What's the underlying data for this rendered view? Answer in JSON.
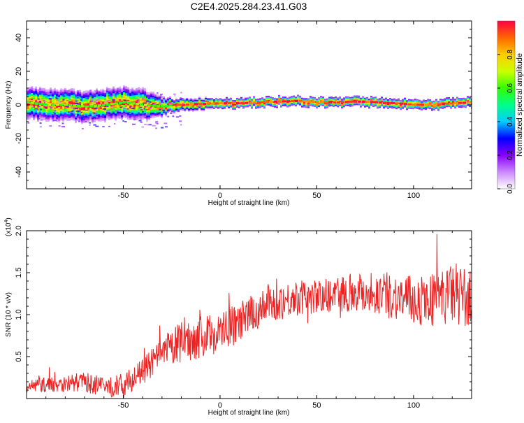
{
  "title": "C2E4.2025.284.23.41.G03",
  "chart_data": [
    {
      "type": "heatmap",
      "xlabel": "Height of straight line (km)",
      "ylabel": "Frequency (Hz)",
      "xlim": [
        -100,
        130
      ],
      "ylim": [
        -50,
        50
      ],
      "xticks": [
        -50,
        0,
        50,
        100
      ],
      "xtick_labels": [
        "-50",
        "0",
        "50",
        "100"
      ],
      "yticks": [
        -40,
        -20,
        0,
        20,
        40
      ],
      "ytick_labels": [
        "-40",
        "-20",
        "0",
        "20",
        "40"
      ],
      "ridge_x": [
        -100,
        -90,
        -80,
        -70,
        -60,
        -50,
        -40,
        -30,
        -25,
        -20,
        -10,
        0,
        10,
        20,
        30,
        40,
        50,
        60,
        70,
        80,
        90,
        100,
        110,
        120,
        130
      ],
      "ridge_y": [
        1.5,
        0,
        0,
        -1,
        0,
        1.5,
        0,
        -1,
        0,
        0,
        0.5,
        1,
        1,
        1.5,
        2,
        2.5,
        1.5,
        1.5,
        2,
        1.5,
        1,
        0,
        0,
        1,
        1.5
      ],
      "spread_x": [
        -100,
        -60,
        -40,
        -25,
        0,
        50,
        130
      ],
      "spread_hz": [
        9,
        9,
        9,
        4,
        3,
        3,
        3
      ],
      "colorbar": {
        "label": "Normalized spectral amplitude",
        "range": [
          0,
          1
        ],
        "ticks": [
          0.0,
          0.2,
          0.4,
          0.6,
          0.8
        ],
        "tick_labels": [
          "0.0",
          "0.2",
          "0.4",
          "0.6",
          "0.8"
        ],
        "colors": [
          "#ffffff",
          "#cc88ff",
          "#8800ff",
          "#0000ff",
          "#00ccff",
          "#00ff88",
          "#33ff00",
          "#ccff00",
          "#ffcc00",
          "#ff6600",
          "#ff0044"
        ]
      }
    },
    {
      "type": "line",
      "xlabel": "Height of straight line (km)",
      "ylabel": "SNR (10 * v/v)",
      "y_multiplier": "(x10",
      "y_multiplier_exp": "4",
      "y_multiplier_close": ")",
      "xlim": [
        -100,
        130
      ],
      "ylim": [
        0,
        20000
      ],
      "xticks": [
        -50,
        0,
        50,
        100
      ],
      "xtick_labels": [
        "-50",
        "0",
        "50",
        "100"
      ],
      "yticks": [
        5000,
        10000,
        15000,
        20000
      ],
      "ytick_labels": [
        "0.5",
        "1.0",
        "1.5",
        "2.0"
      ],
      "color": "#ee2222",
      "trend_x": [
        -100,
        -80,
        -70,
        -60,
        -50,
        -45,
        -40,
        -35,
        -30,
        -25,
        -20,
        -10,
        0,
        10,
        20,
        30,
        40,
        50,
        60,
        70,
        80,
        90,
        100,
        110,
        120,
        125,
        130
      ],
      "trend_y": [
        1500,
        1800,
        2000,
        1300,
        1600,
        2400,
        3200,
        4300,
        5200,
        6100,
        6700,
        7300,
        7900,
        9000,
        10600,
        11500,
        12000,
        12100,
        12500,
        12800,
        12600,
        12200,
        11600,
        11800,
        12400,
        12200,
        11500
      ],
      "noise_x": [
        -100,
        -40,
        -20,
        0,
        50,
        100,
        130
      ],
      "noise_y": [
        800,
        1500,
        2500,
        2500,
        2000,
        3000,
        3800
      ],
      "samples": 900
    }
  ]
}
